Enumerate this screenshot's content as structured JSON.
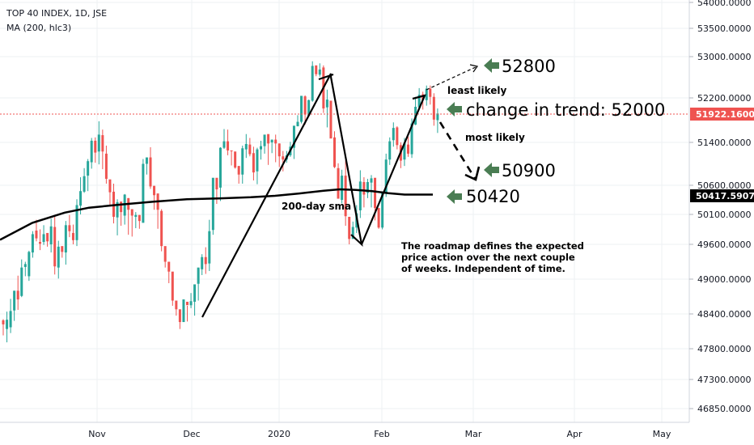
{
  "header": {
    "symbol": "TOP 40 INDEX, 1D, JSE",
    "indicator": "MA (200, hlc3)"
  },
  "chart_data": {
    "type": "candlestick",
    "x_labels": [
      "Nov",
      "Dec",
      "2020",
      "Feb",
      "Mar",
      "Apr",
      "May"
    ],
    "y_ticks": [
      "54000.0000",
      "53500.0000",
      "53000.0000",
      "52200.0000",
      "51400.0000",
      "50600.0000",
      "50100.0000",
      "49600.0000",
      "49000.0000",
      "48400.0000",
      "47800.0000",
      "47300.0000",
      "46850.0000"
    ],
    "last_price": "51922.1600",
    "ma_value": "50417.5907",
    "colors": {
      "up": "#26a69a",
      "down": "#ef5350",
      "ma": "#000000",
      "last_line": "#ef5350",
      "arrow": "#4a7d53"
    },
    "candles": [
      [
        48290,
        48220,
        48310,
        48030
      ],
      [
        48140,
        48300,
        48440,
        47910
      ],
      [
        48170,
        48450,
        48660,
        48070
      ],
      [
        48460,
        48800,
        48800,
        48280
      ],
      [
        48800,
        48650,
        49060,
        48470
      ],
      [
        48710,
        49200,
        49340,
        48690
      ],
      [
        49210,
        49260,
        49300,
        49050
      ],
      [
        49050,
        49470,
        49490,
        48970
      ],
      [
        49460,
        49770,
        49820,
        49370
      ],
      [
        49830,
        49700,
        50010,
        49650
      ],
      [
        49640,
        49610,
        49850,
        49500
      ],
      [
        49640,
        49770,
        49920,
        49590
      ],
      [
        49790,
        49650,
        49770,
        49560
      ],
      [
        49600,
        49900,
        50030,
        49460
      ],
      [
        49890,
        49220,
        50080,
        49080
      ],
      [
        49200,
        49560,
        49660,
        49010
      ],
      [
        49570,
        49470,
        49540,
        49370
      ],
      [
        49460,
        49920,
        49990,
        49250
      ],
      [
        49920,
        49820,
        50090,
        49720
      ],
      [
        49790,
        49670,
        49930,
        49600
      ],
      [
        49670,
        50260,
        50360,
        49570
      ],
      [
        50250,
        50500,
        50750,
        50100
      ],
      [
        50490,
        50770,
        50920,
        50470
      ],
      [
        50780,
        51050,
        51090,
        50500
      ],
      [
        51030,
        51430,
        51480,
        50910
      ],
      [
        51430,
        51210,
        51490,
        51020
      ],
      [
        51230,
        51540,
        51780,
        50990
      ],
      [
        51530,
        51230,
        51630,
        50900
      ],
      [
        51190,
        50720,
        51340,
        50630
      ],
      [
        50710,
        50480,
        50600,
        50240
      ],
      [
        50490,
        50060,
        50630,
        49950
      ],
      [
        50050,
        50310,
        50360,
        49750
      ],
      [
        50320,
        50140,
        50280,
        49910
      ],
      [
        50080,
        50440,
        50450,
        49930
      ],
      [
        50380,
        50180,
        50380,
        49760
      ],
      [
        50190,
        50080,
        50160,
        49730
      ],
      [
        50060,
        50090,
        50140,
        49870
      ],
      [
        50090,
        49990,
        50090,
        49860
      ],
      [
        49960,
        51000,
        51090,
        49960
      ],
      [
        51000,
        51120,
        51100,
        50800
      ],
      [
        51120,
        50580,
        51310,
        50540
      ],
      [
        50590,
        50430,
        50590,
        50180
      ],
      [
        50460,
        50180,
        50310,
        49860
      ],
      [
        50160,
        49570,
        50190,
        49480
      ],
      [
        49570,
        49300,
        49520,
        49200
      ],
      [
        49300,
        49130,
        49260,
        48930
      ],
      [
        49130,
        48630,
        49100,
        48540
      ],
      [
        48630,
        48480,
        48560,
        48370
      ],
      [
        48480,
        48260,
        48350,
        48140
      ],
      [
        48260,
        48650,
        48650,
        48260
      ],
      [
        48610,
        48550,
        48540,
        48270
      ],
      [
        48550,
        48620,
        48760,
        48500
      ],
      [
        48610,
        48910,
        48880,
        48370
      ],
      [
        48920,
        49200,
        49190,
        48630
      ],
      [
        49170,
        49380,
        49430,
        49070
      ],
      [
        49380,
        49260,
        49550,
        49090
      ],
      [
        49270,
        49820,
        50010,
        49140
      ],
      [
        49840,
        50740,
        50710,
        49760
      ],
      [
        50740,
        50530,
        50730,
        50280
      ],
      [
        50560,
        51300,
        51310,
        50330
      ],
      [
        51300,
        51420,
        51640,
        51280
      ],
      [
        51420,
        51250,
        51630,
        51160
      ],
      [
        51250,
        51240,
        51250,
        50970
      ],
      [
        51230,
        50930,
        51180,
        50910
      ],
      [
        50960,
        50800,
        50960,
        50630
      ],
      [
        50800,
        51290,
        51340,
        50630
      ],
      [
        51270,
        51370,
        51550,
        51110
      ],
      [
        51360,
        51180,
        51480,
        51140
      ],
      [
        51200,
        50840,
        51320,
        50690
      ],
      [
        50860,
        51270,
        51300,
        50620
      ],
      [
        51270,
        51330,
        51430,
        51080
      ],
      [
        51330,
        51540,
        51530,
        51190
      ],
      [
        51550,
        51380,
        51480,
        50980
      ],
      [
        51400,
        51450,
        51450,
        51200
      ],
      [
        51450,
        51380,
        51540,
        51030
      ],
      [
        51380,
        51140,
        51380,
        50940
      ],
      [
        51140,
        51080,
        51240,
        50860
      ],
      [
        51080,
        51160,
        51240,
        51020
      ],
      [
        51160,
        51320,
        51410,
        51130
      ],
      [
        51300,
        51700,
        51690,
        51090
      ],
      [
        51690,
        51770,
        51890,
        51690
      ],
      [
        51770,
        52240,
        52230,
        51740
      ],
      [
        52230,
        51900,
        52250,
        51720
      ],
      [
        51880,
        52160,
        52170,
        51870
      ],
      [
        52150,
        52820,
        52910,
        52130
      ],
      [
        52830,
        52660,
        52830,
        52620
      ],
      [
        52650,
        52750,
        52870,
        52610
      ],
      [
        52790,
        52010,
        52830,
        51930
      ],
      [
        52030,
        52170,
        52360,
        51670
      ],
      [
        52150,
        51470,
        51740,
        51520
      ],
      [
        51490,
        50940,
        51600,
        50920
      ],
      [
        50920,
        50370,
        51010,
        50460
      ],
      [
        50350,
        50780,
        50890,
        50290
      ],
      [
        50780,
        50070,
        51070,
        49910
      ],
      [
        50060,
        49690,
        50040,
        49600
      ],
      [
        49690,
        49890,
        49980,
        49750
      ],
      [
        49880,
        50120,
        50260,
        49790
      ],
      [
        50170,
        50670,
        50880,
        50040
      ],
      [
        50660,
        50440,
        50750,
        50220
      ],
      [
        50470,
        50660,
        50720,
        50380
      ],
      [
        50650,
        50730,
        50790,
        50220
      ],
      [
        50740,
        50210,
        50700,
        50000
      ],
      [
        50210,
        49880,
        50180,
        49860
      ],
      [
        49880,
        50480,
        50480,
        49850
      ],
      [
        50460,
        51080,
        51190,
        50400
      ],
      [
        51080,
        51420,
        51490,
        50980
      ],
      [
        51440,
        51660,
        51760,
        51320
      ],
      [
        51670,
        51350,
        51690,
        51270
      ],
      [
        51350,
        51060,
        51400,
        50920
      ],
      [
        51080,
        51390,
        51480,
        50960
      ],
      [
        51360,
        51190,
        51500,
        51130
      ],
      [
        51180,
        51740,
        51830,
        51110
      ],
      [
        51720,
        52040,
        52220,
        51710
      ],
      [
        52030,
        52260,
        52390,
        51980
      ],
      [
        52270,
        52160,
        52320,
        51990
      ],
      [
        52160,
        52380,
        52440,
        52060
      ],
      [
        52380,
        52220,
        52440,
        52080
      ],
      [
        52220,
        51810,
        52290,
        51700
      ],
      [
        51800,
        51920,
        52010,
        51570
      ]
    ],
    "ma": [
      [
        0,
        49675
      ],
      [
        40,
        49960
      ],
      [
        80,
        50130
      ],
      [
        110,
        50215
      ],
      [
        150,
        50270
      ],
      [
        190,
        50320
      ],
      [
        231,
        50360
      ],
      [
        270,
        50375
      ],
      [
        310,
        50395
      ],
      [
        340,
        50420
      ],
      [
        370,
        50460
      ],
      [
        400,
        50505
      ],
      [
        420,
        50530
      ],
      [
        440,
        50520
      ],
      [
        460,
        50500
      ],
      [
        480,
        50465
      ],
      [
        500,
        50440
      ],
      [
        535,
        50440
      ]
    ]
  },
  "annotations": {
    "label_52800": "52800",
    "label_least": "least likely",
    "label_trend": "change in trend: 52000",
    "label_most": "most likely",
    "label_50900": "50900",
    "label_50420": "50420",
    "label_sma": "200-day sma",
    "note": [
      "The roadmap defines the expected",
      "price action over the next couple",
      "of weeks. Independent of time."
    ]
  }
}
